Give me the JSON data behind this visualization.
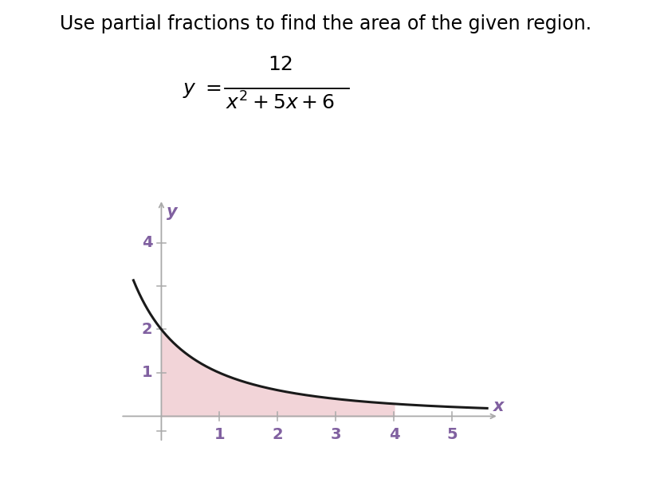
{
  "title": "Use partial fractions to find the area of the given region.",
  "x_fill_start": 0.0,
  "x_fill_end": 4.0,
  "fill_color": "#f2d4d8",
  "curve_color": "#1a1a1a",
  "curve_linewidth": 2.2,
  "axis_color": "#aaaaaa",
  "tick_color": "#aaaaaa",
  "tick_label_color": "#8060a0",
  "x_label": "x",
  "y_label": "y",
  "axis_label_color": "#8060a0",
  "x_ticks": [
    1,
    2,
    3,
    4,
    5
  ],
  "y_ticks": [
    1,
    2,
    4
  ],
  "xlim": [
    -0.7,
    5.8
  ],
  "ylim": [
    -0.6,
    5.0
  ],
  "background_color": "#ffffff",
  "title_fontsize": 17,
  "tick_fontsize": 14,
  "label_fontsize": 15,
  "formula_fontsize": 18
}
